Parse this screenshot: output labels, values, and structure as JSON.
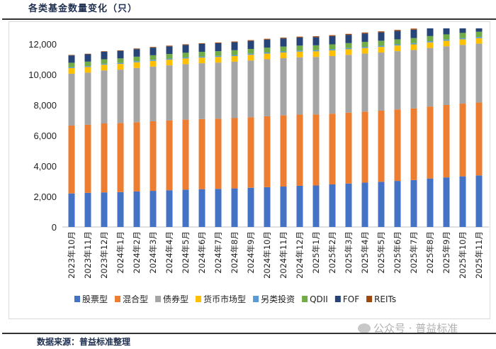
{
  "title": "各类基金数量变化（只）",
  "source": "数据来源：普益标准整理",
  "watermark": "公众号 · 普益标准",
  "chart_data": {
    "type": "bar",
    "stacked": true,
    "title": "各类基金数量变化（只）",
    "xlabel": "",
    "ylabel": "",
    "ylim": [
      0,
      13000
    ],
    "yticks": [
      0,
      2000,
      4000,
      6000,
      8000,
      10000,
      12000
    ],
    "ytick_labels": [
      "0",
      "2,000",
      "4,000",
      "6,000",
      "8,000",
      "10,000",
      "12,000"
    ],
    "grid": false,
    "legend_position": "bottom",
    "categories": [
      "2023年10月",
      "2023年11月",
      "2023年12月",
      "2024年1月",
      "2024年2月",
      "2024年3月",
      "2024年4月",
      "2024年5月",
      "2024年6月",
      "2024年7月",
      "2024年8月",
      "2024年9月",
      "2024年10月",
      "2024年11月",
      "2024年12月",
      "2025年1月",
      "2025年2月",
      "2025年3月",
      "2025年4月",
      "2025年5月",
      "2025年6月",
      "2025年7月",
      "2025年8月",
      "2025年9月",
      "2025年10月",
      "2025年11月"
    ],
    "series": [
      {
        "name": "股票型",
        "color": "#4472C4",
        "values": [
          2200,
          2240,
          2270,
          2290,
          2330,
          2370,
          2410,
          2450,
          2480,
          2500,
          2530,
          2570,
          2610,
          2650,
          2700,
          2720,
          2790,
          2850,
          2910,
          2960,
          3020,
          3080,
          3180,
          3250,
          3320,
          3380
        ]
      },
      {
        "name": "混合型",
        "color": "#ED7D31",
        "values": [
          4450,
          4460,
          4520,
          4530,
          4540,
          4560,
          4570,
          4590,
          4600,
          4600,
          4610,
          4630,
          4650,
          4670,
          4670,
          4660,
          4640,
          4650,
          4660,
          4670,
          4690,
          4700,
          4720,
          4750,
          4770,
          4780
        ]
      },
      {
        "name": "债券型",
        "color": "#A5A5A5",
        "values": [
          3400,
          3420,
          3480,
          3500,
          3560,
          3590,
          3620,
          3640,
          3660,
          3680,
          3700,
          3720,
          3740,
          3750,
          3760,
          3770,
          3780,
          3790,
          3800,
          3810,
          3820,
          3830,
          3840,
          3850,
          3855,
          3860
        ]
      },
      {
        "name": "货币市场型",
        "color": "#FFC000",
        "values": [
          370,
          370,
          372,
          372,
          372,
          372,
          372,
          371,
          371,
          370,
          370,
          370,
          370,
          370,
          370,
          369,
          369,
          368,
          368,
          368,
          367,
          366,
          365,
          364,
          363,
          362
        ]
      },
      {
        "name": "另类投资",
        "color": "#5B9BD5",
        "values": [
          60,
          62,
          64,
          66,
          68,
          70,
          70,
          70,
          71,
          72,
          72,
          73,
          74,
          74,
          75,
          75,
          76,
          76,
          77,
          78,
          78,
          79,
          79,
          80,
          80,
          80
        ]
      },
      {
        "name": "QDII",
        "color": "#70AD47",
        "values": [
          290,
          292,
          294,
          296,
          298,
          300,
          302,
          304,
          306,
          308,
          310,
          312,
          314,
          316,
          318,
          320,
          322,
          324,
          326,
          328,
          330,
          332,
          334,
          336,
          338,
          340
        ]
      },
      {
        "name": "FOF",
        "color": "#264478",
        "values": [
          480,
          485,
          490,
          495,
          498,
          500,
          505,
          510,
          515,
          518,
          520,
          525,
          528,
          530,
          532,
          535,
          540,
          542,
          545,
          548,
          550,
          552,
          555,
          557,
          558,
          560
        ]
      },
      {
        "name": "REITs",
        "color": "#9E480E",
        "values": [
          30,
          31,
          33,
          35,
          38,
          40,
          42,
          44,
          46,
          48,
          50,
          52,
          54,
          55,
          57,
          58,
          60,
          62,
          64,
          66,
          68,
          70,
          72,
          73,
          74,
          75
        ]
      }
    ]
  }
}
